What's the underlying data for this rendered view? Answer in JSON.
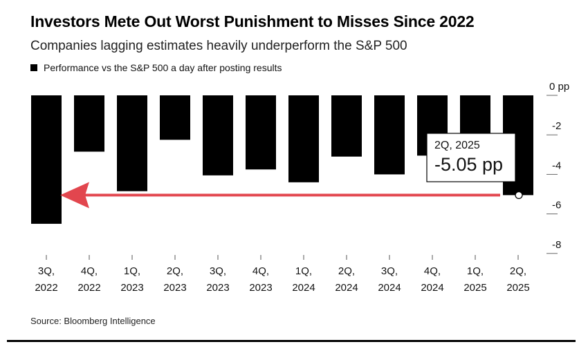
{
  "title": "Investors Mete Out Worst Punishment to Misses Since 2022",
  "subtitle": "Companies lagging estimates heavily underperform the S&P 500",
  "legend_label": "Performance vs the S&P 500 a day after posting results",
  "source": "Source: Bloomberg Intelligence",
  "chart_data": {
    "type": "bar",
    "categories": [
      [
        "3Q,",
        "2022"
      ],
      [
        "4Q,",
        "2022"
      ],
      [
        "1Q,",
        "2023"
      ],
      [
        "2Q,",
        "2023"
      ],
      [
        "3Q,",
        "2023"
      ],
      [
        "4Q,",
        "2023"
      ],
      [
        "1Q,",
        "2024"
      ],
      [
        "2Q,",
        "2024"
      ],
      [
        "3Q,",
        "2024"
      ],
      [
        "4Q,",
        "2024"
      ],
      [
        "1Q,",
        "2025"
      ],
      [
        "2Q,",
        "2025"
      ]
    ],
    "series": [
      {
        "name": "Performance vs the S&P 500 a day after posting results",
        "values": [
          -6.5,
          -2.85,
          -4.85,
          -2.25,
          -4.05,
          -3.75,
          -4.4,
          -3.1,
          -4.0,
          -3.05,
          -2.6,
          -5.05
        ]
      }
    ],
    "ylim": [
      -8,
      0
    ],
    "y_ticks": [
      0,
      -2,
      -4,
      -6,
      -8
    ],
    "y_tick_labels": [
      "0 pp",
      "-2",
      "-4",
      "-6",
      "-8"
    ],
    "y_axis_side": "right",
    "grid": false,
    "bar_color": "#000000",
    "arrow_color": "#e0363f",
    "annotation": {
      "category_index": 11,
      "period": "2Q, 2025",
      "value_label": "-5.05 pp"
    }
  }
}
